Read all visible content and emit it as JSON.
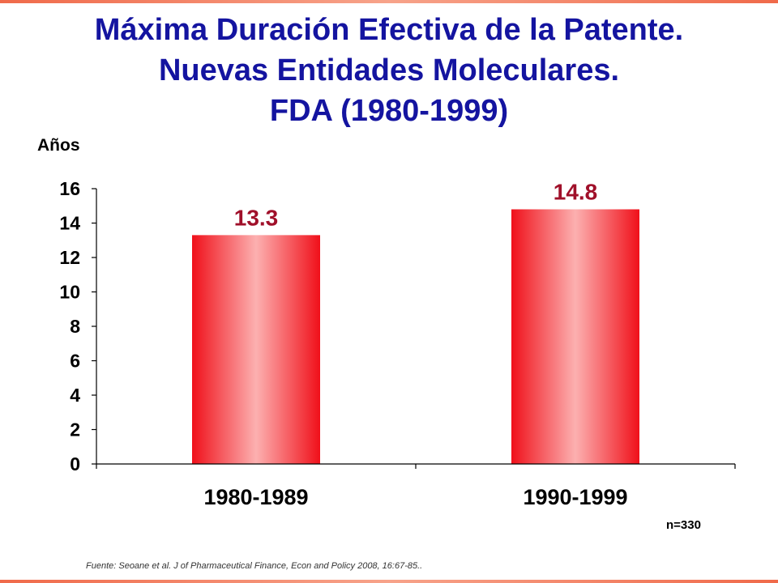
{
  "title_lines": [
    "Máxima Duración Efectiva de la Patente.",
    "Nuevas Entidades Moleculares.",
    "FDA (1980-1999)"
  ],
  "note": "n=330",
  "source": "Fuente: Seoane et al. J of Pharmaceutical Finance, Econ and Policy 2008, 16:67-85..",
  "colors": {
    "title": "#1414a0",
    "bar_edge": "#f0101a",
    "bar_center": "#fcb0b0",
    "data_label": "#a0102a"
  },
  "chart_data": {
    "type": "bar",
    "title": "Máxima Duración Efectiva de la Patente. Nuevas Entidades Moleculares. FDA (1980-1999)",
    "ylabel": "Años",
    "xlabel": "",
    "categories": [
      "1980-1989",
      "1990-1999"
    ],
    "values": [
      13.3,
      14.8
    ],
    "data_labels": [
      "13.3",
      "14.8"
    ],
    "ylim": [
      0,
      16
    ],
    "yticks": [
      0,
      2,
      4,
      6,
      8,
      10,
      12,
      14,
      16
    ],
    "grid": false,
    "legend": "none"
  }
}
